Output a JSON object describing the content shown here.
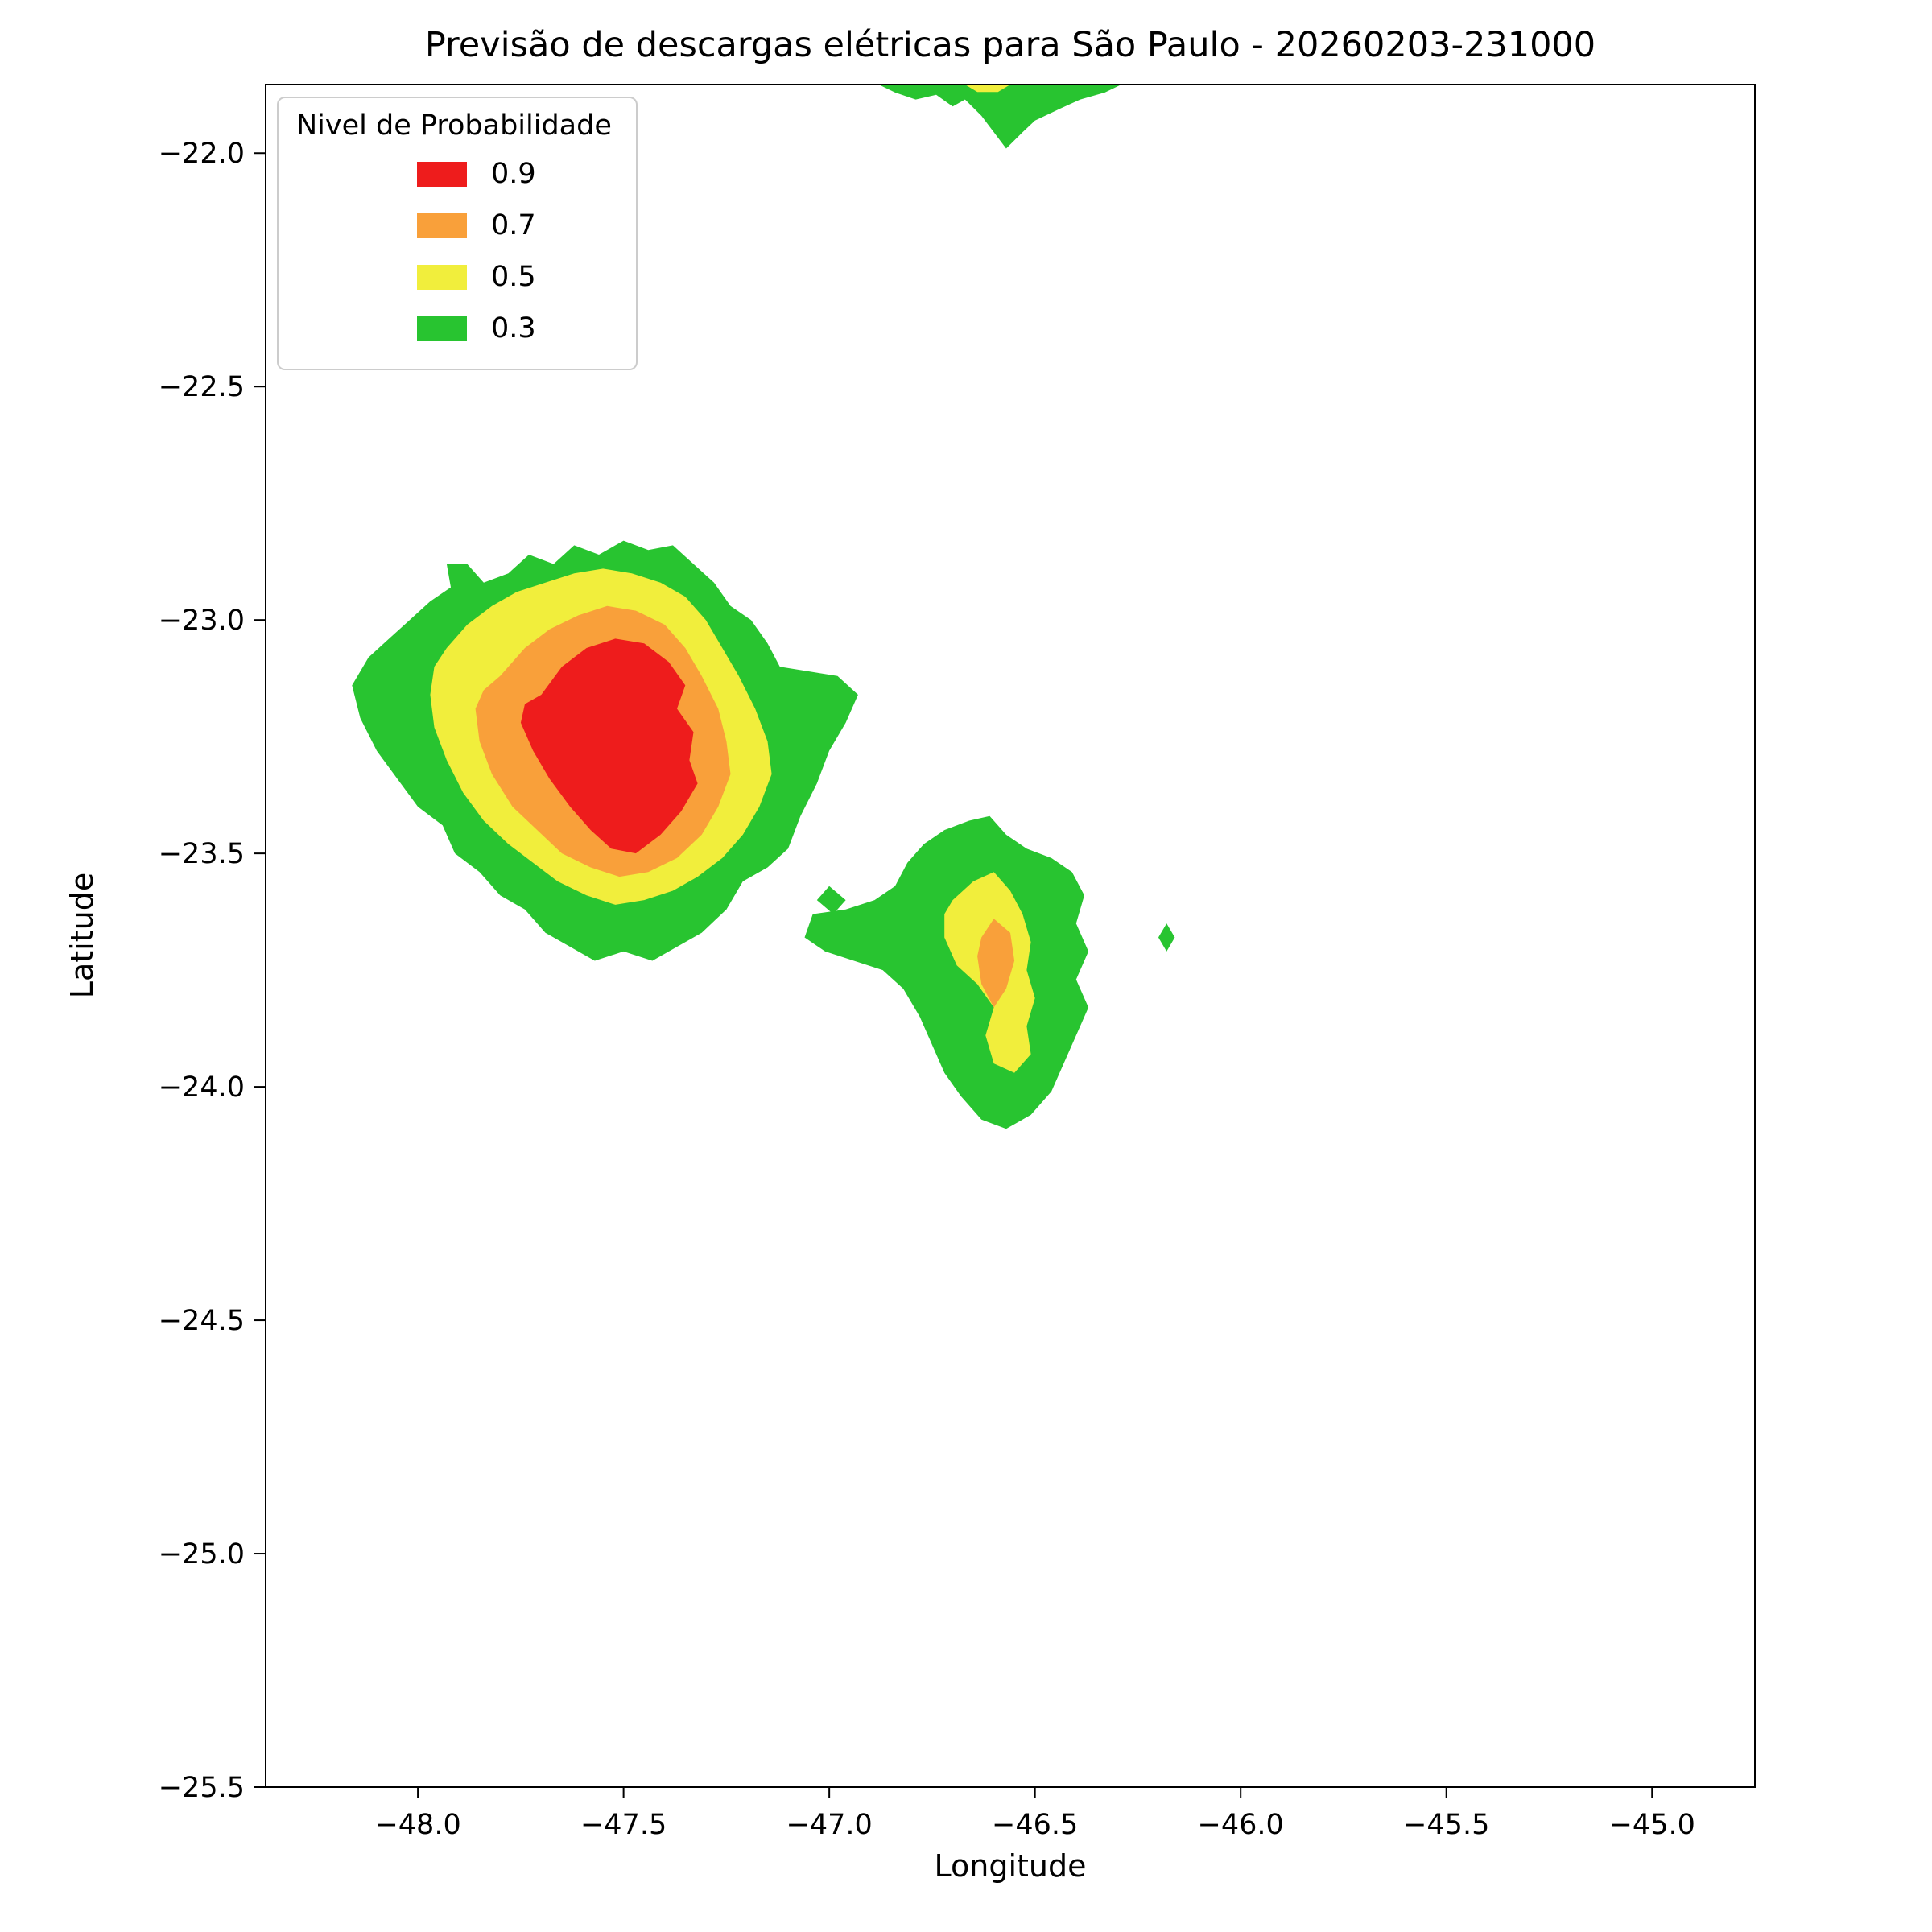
{
  "chart_data": {
    "type": "filled_contour_map",
    "title": "Previsão de descargas elétricas para São Paulo - 20260203-231000",
    "xlabel": "Longitude",
    "ylabel": "Latitude",
    "xlim": [
      -48.37,
      -44.75
    ],
    "ylim": [
      -25.5,
      -21.853
    ],
    "grid": false,
    "xticks": [
      -48.0,
      -47.5,
      -47.0,
      -46.5,
      -46.0,
      -45.5,
      -45.0
    ],
    "yticks": [
      -22.0,
      -22.5,
      -23.0,
      -23.5,
      -24.0,
      -24.5,
      -25.0,
      -25.5
    ],
    "xtick_labels": [
      "−48.0",
      "−47.5",
      "−47.0",
      "−46.5",
      "−46.0",
      "−45.5",
      "−45.0"
    ],
    "ytick_labels": [
      "−22.0",
      "−22.5",
      "−23.0",
      "−23.5",
      "−24.0",
      "−24.5",
      "−25.0",
      "−25.5"
    ],
    "legend": {
      "title": "Nivel de Probabilidade",
      "position": "upper left",
      "entries": [
        {
          "label": "0.9",
          "level": 0.9,
          "color": "#ee1c1c"
        },
        {
          "label": "0.7",
          "level": 0.7,
          "color": "#f9a03a"
        },
        {
          "label": "0.5",
          "level": 0.5,
          "color": "#f1ee3c"
        },
        {
          "label": "0.3",
          "level": 0.3,
          "color": "#28c430"
        }
      ]
    },
    "regions": [
      {
        "name": "north-cell-green",
        "level": 0.3,
        "polygon": [
          [
            -46.88,
            -21.853
          ],
          [
            -46.84,
            -21.87
          ],
          [
            -46.79,
            -21.885
          ],
          [
            -46.74,
            -21.875
          ],
          [
            -46.7,
            -21.9
          ],
          [
            -46.67,
            -21.885
          ],
          [
            -46.63,
            -21.92
          ],
          [
            -46.6,
            -21.955
          ],
          [
            -46.57,
            -21.99
          ],
          [
            -46.53,
            -21.955
          ],
          [
            -46.5,
            -21.93
          ],
          [
            -46.44,
            -21.905
          ],
          [
            -46.39,
            -21.885
          ],
          [
            -46.33,
            -21.87
          ],
          [
            -46.29,
            -21.853
          ]
        ]
      },
      {
        "name": "north-cell-yellow",
        "level": 0.5,
        "polygon": [
          [
            -46.67,
            -21.853
          ],
          [
            -46.64,
            -21.869
          ],
          [
            -46.59,
            -21.869
          ],
          [
            -46.56,
            -21.853
          ]
        ]
      },
      {
        "name": "main-cell-green",
        "level": 0.3,
        "polygon": [
          [
            -48.02,
            -23.0
          ],
          [
            -47.97,
            -22.96
          ],
          [
            -47.92,
            -22.93
          ],
          [
            -47.93,
            -22.88
          ],
          [
            -47.88,
            -22.88
          ],
          [
            -47.84,
            -22.92
          ],
          [
            -47.78,
            -22.9
          ],
          [
            -47.73,
            -22.86
          ],
          [
            -47.67,
            -22.88
          ],
          [
            -47.62,
            -22.84
          ],
          [
            -47.56,
            -22.86
          ],
          [
            -47.5,
            -22.83
          ],
          [
            -47.44,
            -22.85
          ],
          [
            -47.38,
            -22.84
          ],
          [
            -47.33,
            -22.88
          ],
          [
            -47.28,
            -22.92
          ],
          [
            -47.24,
            -22.97
          ],
          [
            -47.19,
            -23.0
          ],
          [
            -47.15,
            -23.05
          ],
          [
            -47.12,
            -23.1
          ],
          [
            -47.05,
            -23.11
          ],
          [
            -46.98,
            -23.12
          ],
          [
            -46.93,
            -23.16
          ],
          [
            -46.96,
            -23.22
          ],
          [
            -47.0,
            -23.28
          ],
          [
            -47.03,
            -23.35
          ],
          [
            -47.07,
            -23.42
          ],
          [
            -47.1,
            -23.49
          ],
          [
            -47.15,
            -23.53
          ],
          [
            -47.21,
            -23.56
          ],
          [
            -47.25,
            -23.62
          ],
          [
            -47.31,
            -23.67
          ],
          [
            -47.37,
            -23.7
          ],
          [
            -47.43,
            -23.73
          ],
          [
            -47.5,
            -23.71
          ],
          [
            -47.57,
            -23.73
          ],
          [
            -47.63,
            -23.7
          ],
          [
            -47.69,
            -23.67
          ],
          [
            -47.74,
            -23.62
          ],
          [
            -47.8,
            -23.59
          ],
          [
            -47.85,
            -23.54
          ],
          [
            -47.91,
            -23.5
          ],
          [
            -47.94,
            -23.44
          ],
          [
            -48.0,
            -23.4
          ],
          [
            -48.05,
            -23.34
          ],
          [
            -48.1,
            -23.28
          ],
          [
            -48.14,
            -23.21
          ],
          [
            -48.16,
            -23.14
          ],
          [
            -48.12,
            -23.08
          ],
          [
            -48.07,
            -23.04
          ]
        ]
      },
      {
        "name": "main-cell-yellow",
        "level": 0.5,
        "polygon": [
          [
            -47.93,
            -23.06
          ],
          [
            -47.88,
            -23.01
          ],
          [
            -47.82,
            -22.97
          ],
          [
            -47.76,
            -22.94
          ],
          [
            -47.69,
            -22.92
          ],
          [
            -47.62,
            -22.9
          ],
          [
            -47.55,
            -22.89
          ],
          [
            -47.48,
            -22.9
          ],
          [
            -47.41,
            -22.92
          ],
          [
            -47.35,
            -22.95
          ],
          [
            -47.3,
            -23.0
          ],
          [
            -47.26,
            -23.06
          ],
          [
            -47.22,
            -23.12
          ],
          [
            -47.18,
            -23.19
          ],
          [
            -47.15,
            -23.26
          ],
          [
            -47.14,
            -23.33
          ],
          [
            -47.17,
            -23.4
          ],
          [
            -47.21,
            -23.46
          ],
          [
            -47.26,
            -23.51
          ],
          [
            -47.32,
            -23.55
          ],
          [
            -47.38,
            -23.58
          ],
          [
            -47.45,
            -23.6
          ],
          [
            -47.52,
            -23.61
          ],
          [
            -47.59,
            -23.59
          ],
          [
            -47.66,
            -23.56
          ],
          [
            -47.72,
            -23.52
          ],
          [
            -47.78,
            -23.48
          ],
          [
            -47.84,
            -23.43
          ],
          [
            -47.89,
            -23.37
          ],
          [
            -47.93,
            -23.3
          ],
          [
            -47.96,
            -23.23
          ],
          [
            -47.97,
            -23.16
          ],
          [
            -47.96,
            -23.1
          ]
        ]
      },
      {
        "name": "main-cell-orange",
        "level": 0.7,
        "polygon": [
          [
            -47.8,
            -23.12
          ],
          [
            -47.74,
            -23.06
          ],
          [
            -47.68,
            -23.02
          ],
          [
            -47.61,
            -22.99
          ],
          [
            -47.54,
            -22.97
          ],
          [
            -47.47,
            -22.98
          ],
          [
            -47.4,
            -23.01
          ],
          [
            -47.35,
            -23.06
          ],
          [
            -47.31,
            -23.12
          ],
          [
            -47.27,
            -23.19
          ],
          [
            -47.25,
            -23.26
          ],
          [
            -47.24,
            -23.33
          ],
          [
            -47.27,
            -23.4
          ],
          [
            -47.31,
            -23.46
          ],
          [
            -47.37,
            -23.51
          ],
          [
            -47.44,
            -23.54
          ],
          [
            -47.51,
            -23.55
          ],
          [
            -47.58,
            -23.53
          ],
          [
            -47.65,
            -23.5
          ],
          [
            -47.71,
            -23.45
          ],
          [
            -47.77,
            -23.4
          ],
          [
            -47.82,
            -23.33
          ],
          [
            -47.85,
            -23.26
          ],
          [
            -47.86,
            -23.19
          ],
          [
            -47.84,
            -23.15
          ]
        ]
      },
      {
        "name": "main-cell-red",
        "level": 0.9,
        "polygon": [
          [
            -47.7,
            -23.16
          ],
          [
            -47.65,
            -23.1
          ],
          [
            -47.59,
            -23.06
          ],
          [
            -47.52,
            -23.04
          ],
          [
            -47.45,
            -23.05
          ],
          [
            -47.39,
            -23.09
          ],
          [
            -47.35,
            -23.14
          ],
          [
            -47.37,
            -23.19
          ],
          [
            -47.33,
            -23.24
          ],
          [
            -47.34,
            -23.3
          ],
          [
            -47.32,
            -23.35
          ],
          [
            -47.36,
            -23.41
          ],
          [
            -47.41,
            -23.46
          ],
          [
            -47.47,
            -23.5
          ],
          [
            -47.53,
            -23.49
          ],
          [
            -47.58,
            -23.45
          ],
          [
            -47.63,
            -23.4
          ],
          [
            -47.68,
            -23.34
          ],
          [
            -47.72,
            -23.28
          ],
          [
            -47.75,
            -23.22
          ],
          [
            -47.74,
            -23.18
          ]
        ]
      },
      {
        "name": "east-cell-green",
        "level": 0.3,
        "polygon": [
          [
            -47.04,
            -23.63
          ],
          [
            -46.96,
            -23.62
          ],
          [
            -46.89,
            -23.6
          ],
          [
            -46.84,
            -23.57
          ],
          [
            -46.81,
            -23.52
          ],
          [
            -46.77,
            -23.48
          ],
          [
            -46.72,
            -23.45
          ],
          [
            -46.66,
            -23.43
          ],
          [
            -46.61,
            -23.42
          ],
          [
            -46.57,
            -23.46
          ],
          [
            -46.52,
            -23.49
          ],
          [
            -46.46,
            -23.51
          ],
          [
            -46.41,
            -23.54
          ],
          [
            -46.38,
            -23.59
          ],
          [
            -46.4,
            -23.65
          ],
          [
            -46.37,
            -23.71
          ],
          [
            -46.4,
            -23.77
          ],
          [
            -46.37,
            -23.83
          ],
          [
            -46.4,
            -23.89
          ],
          [
            -46.43,
            -23.95
          ],
          [
            -46.46,
            -24.01
          ],
          [
            -46.51,
            -24.06
          ],
          [
            -46.57,
            -24.09
          ],
          [
            -46.63,
            -24.07
          ],
          [
            -46.68,
            -24.02
          ],
          [
            -46.72,
            -23.97
          ],
          [
            -46.75,
            -23.91
          ],
          [
            -46.78,
            -23.85
          ],
          [
            -46.82,
            -23.79
          ],
          [
            -46.87,
            -23.75
          ],
          [
            -46.94,
            -23.73
          ],
          [
            -47.01,
            -23.71
          ],
          [
            -47.06,
            -23.68
          ]
        ]
      },
      {
        "name": "east-cell-yellow",
        "level": 0.5,
        "polygon": [
          [
            -46.7,
            -23.6
          ],
          [
            -46.65,
            -23.56
          ],
          [
            -46.6,
            -23.54
          ],
          [
            -46.56,
            -23.58
          ],
          [
            -46.53,
            -23.63
          ],
          [
            -46.51,
            -23.69
          ],
          [
            -46.52,
            -23.75
          ],
          [
            -46.5,
            -23.81
          ],
          [
            -46.52,
            -23.87
          ],
          [
            -46.51,
            -23.93
          ],
          [
            -46.55,
            -23.97
          ],
          [
            -46.6,
            -23.95
          ],
          [
            -46.62,
            -23.89
          ],
          [
            -46.6,
            -23.83
          ],
          [
            -46.64,
            -23.78
          ],
          [
            -46.69,
            -23.74
          ],
          [
            -46.72,
            -23.68
          ],
          [
            -46.72,
            -23.63
          ]
        ]
      },
      {
        "name": "east-cell-orange",
        "level": 0.7,
        "polygon": [
          [
            -46.63,
            -23.68
          ],
          [
            -46.6,
            -23.64
          ],
          [
            -46.56,
            -23.67
          ],
          [
            -46.55,
            -23.73
          ],
          [
            -46.57,
            -23.79
          ],
          [
            -46.6,
            -23.83
          ],
          [
            -46.63,
            -23.78
          ],
          [
            -46.64,
            -23.72
          ]
        ]
      },
      {
        "name": "west-sliver-green",
        "level": 0.3,
        "polygon": [
          [
            -47.0,
            -23.57
          ],
          [
            -46.96,
            -23.6
          ],
          [
            -46.99,
            -23.63
          ],
          [
            -47.03,
            -23.6
          ]
        ]
      },
      {
        "name": "east-sliver-green",
        "level": 0.3,
        "polygon": [
          [
            -46.18,
            -23.65
          ],
          [
            -46.2,
            -23.68
          ],
          [
            -46.18,
            -23.71
          ],
          [
            -46.16,
            -23.68
          ]
        ]
      }
    ]
  }
}
